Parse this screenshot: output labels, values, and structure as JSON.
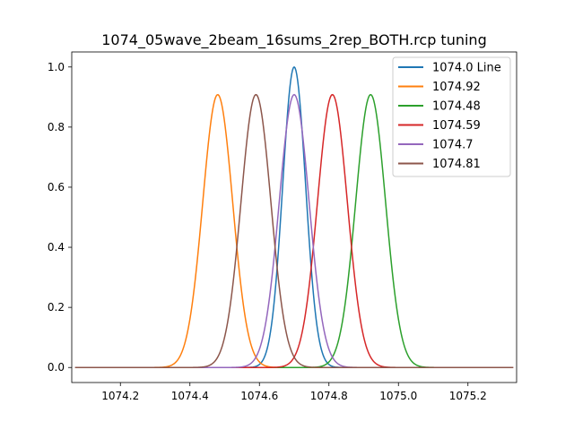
{
  "chart_data": {
    "type": "line",
    "title": "1074_05wave_2beam_16sums_2rep_BOTH.rcp tuning",
    "xlabel": "",
    "ylabel": "",
    "xlim": [
      1074.06,
      1075.34
    ],
    "ylim": [
      -0.05,
      1.05
    ],
    "x_range": [
      1074.07,
      1075.33
    ],
    "x_ticks": [
      1074.2,
      1074.4,
      1074.6,
      1074.8,
      1075.0,
      1075.2
    ],
    "x_tick_labels": [
      "1074.2",
      "1074.4",
      "1074.6",
      "1074.8",
      "1075.0",
      "1075.2"
    ],
    "y_ticks": [
      0.0,
      0.2,
      0.4,
      0.6,
      0.8,
      1.0
    ],
    "y_tick_labels": [
      "0.0",
      "0.2",
      "0.4",
      "0.6",
      "0.8",
      "1.0"
    ],
    "grid": false,
    "legend_position": "top-right",
    "series": [
      {
        "name": "1074.0 Line",
        "color": "#1f77b4",
        "center": 1074.7,
        "peak": 1.0,
        "sigma": 0.033
      },
      {
        "name": "1074.92",
        "color": "#ff7f0e",
        "center": 1074.48,
        "peak": 0.908,
        "sigma": 0.043
      },
      {
        "name": "1074.48",
        "color": "#2ca02c",
        "center": 1074.92,
        "peak": 0.908,
        "sigma": 0.043
      },
      {
        "name": "1074.59",
        "color": "#d62728",
        "center": 1074.81,
        "peak": 0.908,
        "sigma": 0.043
      },
      {
        "name": "1074.7",
        "color": "#9467bd",
        "center": 1074.7,
        "peak": 0.908,
        "sigma": 0.043
      },
      {
        "name": "1074.81",
        "color": "#8c564b",
        "center": 1074.59,
        "peak": 0.908,
        "sigma": 0.043
      }
    ]
  }
}
